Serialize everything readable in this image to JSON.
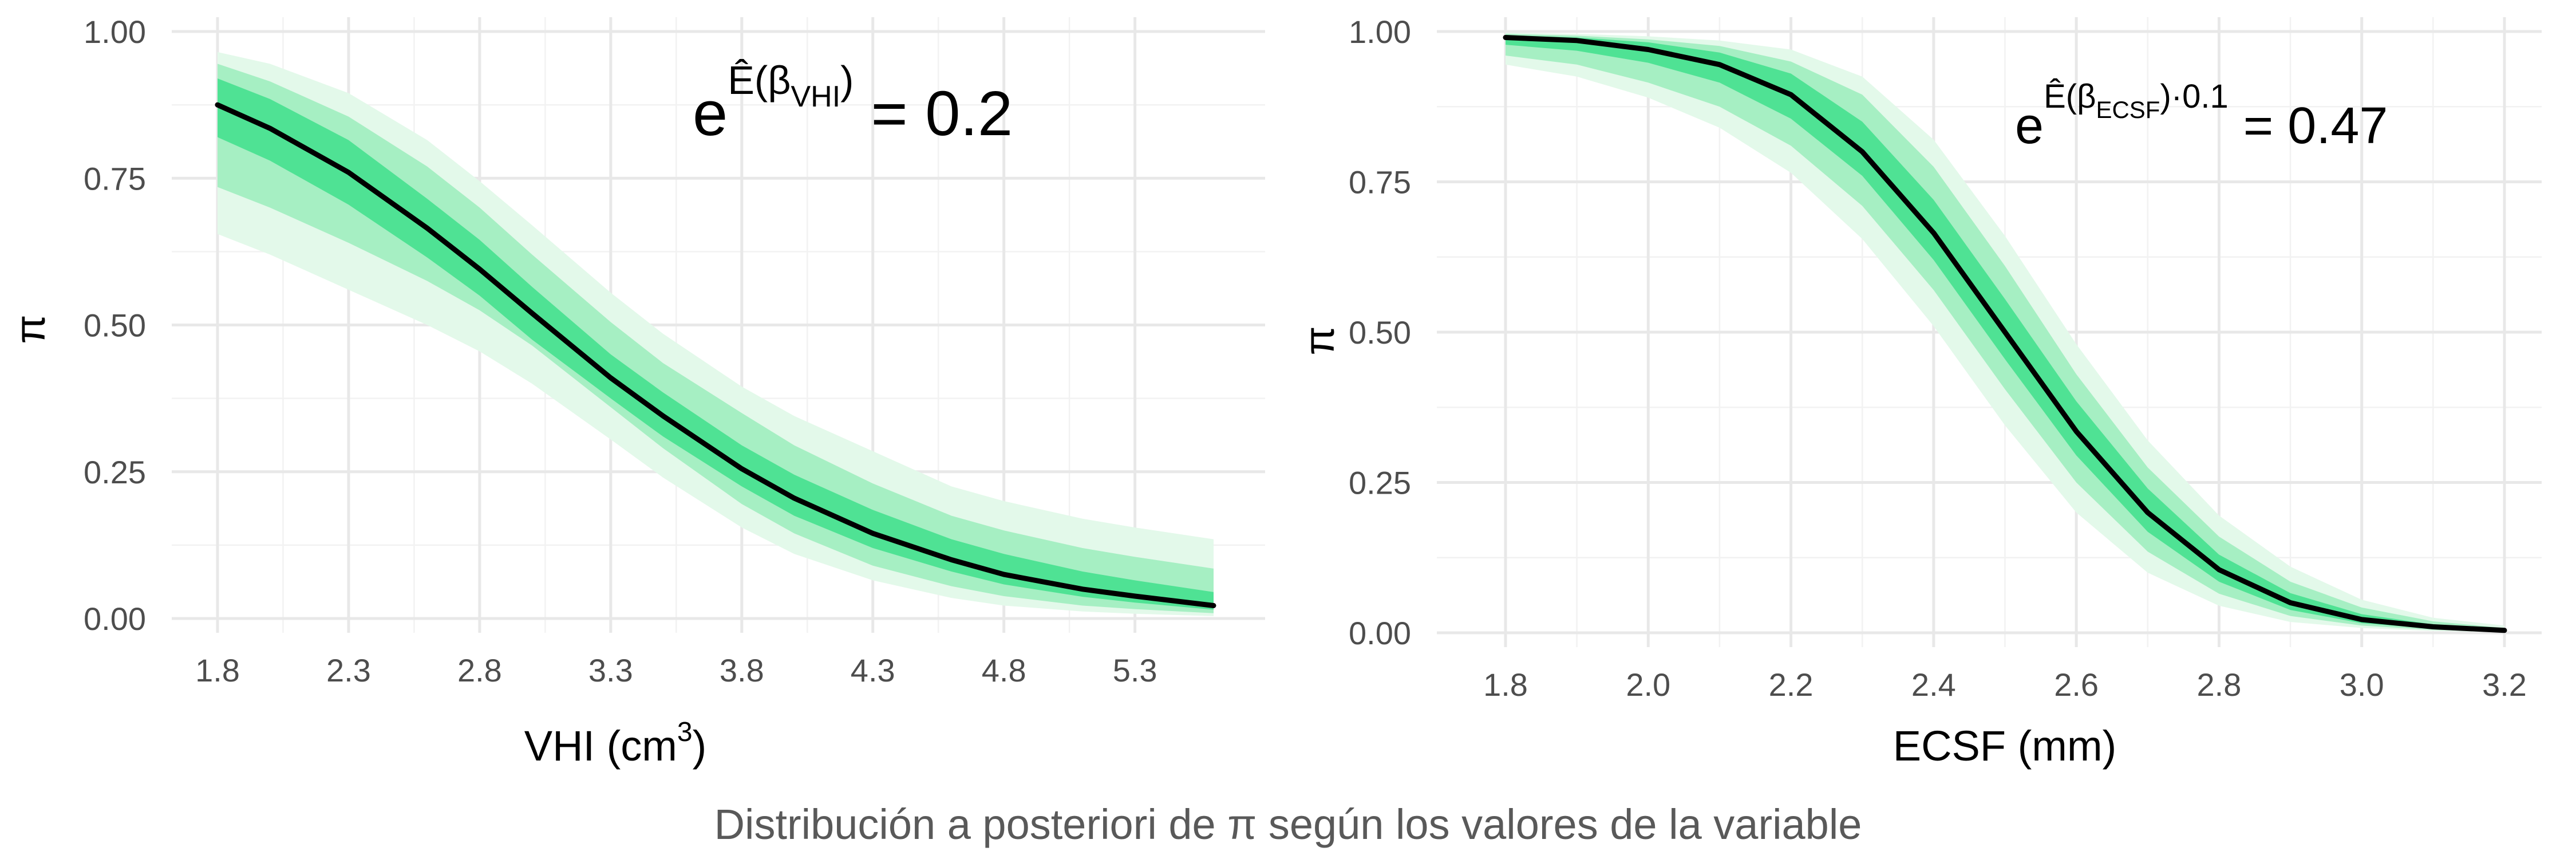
{
  "caption": "Distribución a posteriori de π según los valores de la variable",
  "colors": {
    "median_line": "#000000",
    "band_outer": "#e3f9ea",
    "band_mid": "#a6efc3",
    "band_inner": "#4fe294"
  },
  "chart_data": [
    {
      "type": "area",
      "xlabel": "VHI (cm",
      "xlabel_sup": "3",
      "xlabel_end": ")",
      "ylabel": "π",
      "annotation": {
        "base": "e",
        "exp": "Ê(β",
        "sub": "VHI",
        "exp_end": ")",
        "value": "= 0.2"
      },
      "xlim": [
        1.8,
        5.6
      ],
      "ylim": [
        0,
        1
      ],
      "x_ticks": [
        1.8,
        2.3,
        2.8,
        3.3,
        3.8,
        4.3,
        4.8,
        5.3
      ],
      "x_tick_labels": [
        "1.8",
        "2.3",
        "2.8",
        "3.3",
        "3.8",
        "4.3",
        "4.8",
        "5.3"
      ],
      "y_ticks": [
        0,
        0.25,
        0.5,
        0.75,
        1
      ],
      "y_tick_labels": [
        "0.00",
        "0.25",
        "0.50",
        "0.75",
        "1.00"
      ],
      "grid": true,
      "x": [
        1.8,
        2.0,
        2.3,
        2.6,
        2.8,
        3.0,
        3.3,
        3.5,
        3.8,
        4.0,
        4.3,
        4.6,
        4.8,
        5.1,
        5.3,
        5.6
      ],
      "median": [
        0.875,
        0.835,
        0.76,
        0.665,
        0.595,
        0.52,
        0.41,
        0.345,
        0.255,
        0.205,
        0.145,
        0.1,
        0.075,
        0.05,
        0.038,
        0.022
      ],
      "band_outer": {
        "lower": [
          0.655,
          0.62,
          0.56,
          0.5,
          0.455,
          0.4,
          0.305,
          0.24,
          0.155,
          0.11,
          0.065,
          0.035,
          0.022,
          0.012,
          0.008,
          0.004
        ],
        "upper": [
          0.965,
          0.945,
          0.895,
          0.815,
          0.745,
          0.67,
          0.555,
          0.485,
          0.395,
          0.345,
          0.285,
          0.225,
          0.2,
          0.17,
          0.155,
          0.135
        ]
      },
      "band_mid": {
        "lower": [
          0.735,
          0.7,
          0.64,
          0.575,
          0.525,
          0.465,
          0.36,
          0.29,
          0.195,
          0.145,
          0.09,
          0.055,
          0.038,
          0.022,
          0.016,
          0.009
        ],
        "upper": [
          0.945,
          0.915,
          0.855,
          0.77,
          0.7,
          0.62,
          0.505,
          0.435,
          0.35,
          0.295,
          0.23,
          0.175,
          0.15,
          0.12,
          0.105,
          0.085
        ]
      },
      "band_inner": {
        "lower": [
          0.82,
          0.78,
          0.705,
          0.615,
          0.55,
          0.475,
          0.375,
          0.31,
          0.225,
          0.175,
          0.12,
          0.08,
          0.058,
          0.037,
          0.027,
          0.015
        ],
        "upper": [
          0.92,
          0.885,
          0.815,
          0.715,
          0.645,
          0.565,
          0.45,
          0.385,
          0.295,
          0.245,
          0.185,
          0.135,
          0.11,
          0.08,
          0.065,
          0.045
        ]
      }
    },
    {
      "type": "area",
      "xlabel": "ECSF (mm)",
      "ylabel": "π",
      "annotation": {
        "base": "e",
        "exp": "Ê(β",
        "sub": "ECSF",
        "exp_end": ")·0.1",
        "value": "= 0.47"
      },
      "xlim": [
        1.8,
        3.2
      ],
      "ylim": [
        0,
        1
      ],
      "x_ticks": [
        1.8,
        2.0,
        2.2,
        2.4,
        2.6,
        2.8,
        3.0,
        3.2
      ],
      "x_tick_labels": [
        "1.8",
        "2.0",
        "2.2",
        "2.4",
        "2.6",
        "2.8",
        "3.0",
        "3.2"
      ],
      "y_ticks": [
        0,
        0.25,
        0.5,
        0.75,
        1
      ],
      "y_tick_labels": [
        "0.00",
        "0.25",
        "0.50",
        "0.75",
        "1.00"
      ],
      "grid": true,
      "x": [
        1.8,
        1.9,
        2.0,
        2.1,
        2.2,
        2.3,
        2.4,
        2.5,
        2.6,
        2.7,
        2.8,
        2.9,
        3.0,
        3.1,
        3.2
      ],
      "median": [
        0.99,
        0.985,
        0.97,
        0.945,
        0.895,
        0.8,
        0.665,
        0.5,
        0.335,
        0.2,
        0.105,
        0.05,
        0.022,
        0.01,
        0.004
      ],
      "band_outer": {
        "lower": [
          0.945,
          0.925,
          0.89,
          0.84,
          0.765,
          0.655,
          0.51,
          0.345,
          0.2,
          0.1,
          0.045,
          0.018,
          0.008,
          0.003,
          0.001
        ],
        "upper": [
          0.998,
          0.996,
          0.992,
          0.985,
          0.97,
          0.925,
          0.82,
          0.66,
          0.48,
          0.32,
          0.195,
          0.11,
          0.055,
          0.025,
          0.012
        ]
      },
      "band_mid": {
        "lower": [
          0.96,
          0.945,
          0.915,
          0.875,
          0.81,
          0.71,
          0.57,
          0.405,
          0.25,
          0.135,
          0.065,
          0.028,
          0.012,
          0.005,
          0.002
        ],
        "upper": [
          0.996,
          0.993,
          0.987,
          0.976,
          0.95,
          0.895,
          0.775,
          0.61,
          0.43,
          0.275,
          0.16,
          0.085,
          0.042,
          0.019,
          0.008
        ]
      },
      "band_inner": {
        "lower": [
          0.978,
          0.968,
          0.948,
          0.915,
          0.855,
          0.76,
          0.62,
          0.455,
          0.295,
          0.168,
          0.085,
          0.038,
          0.016,
          0.007,
          0.003
        ],
        "upper": [
          0.994,
          0.99,
          0.982,
          0.965,
          0.93,
          0.85,
          0.72,
          0.555,
          0.385,
          0.24,
          0.13,
          0.066,
          0.031,
          0.014,
          0.006
        ]
      }
    }
  ]
}
